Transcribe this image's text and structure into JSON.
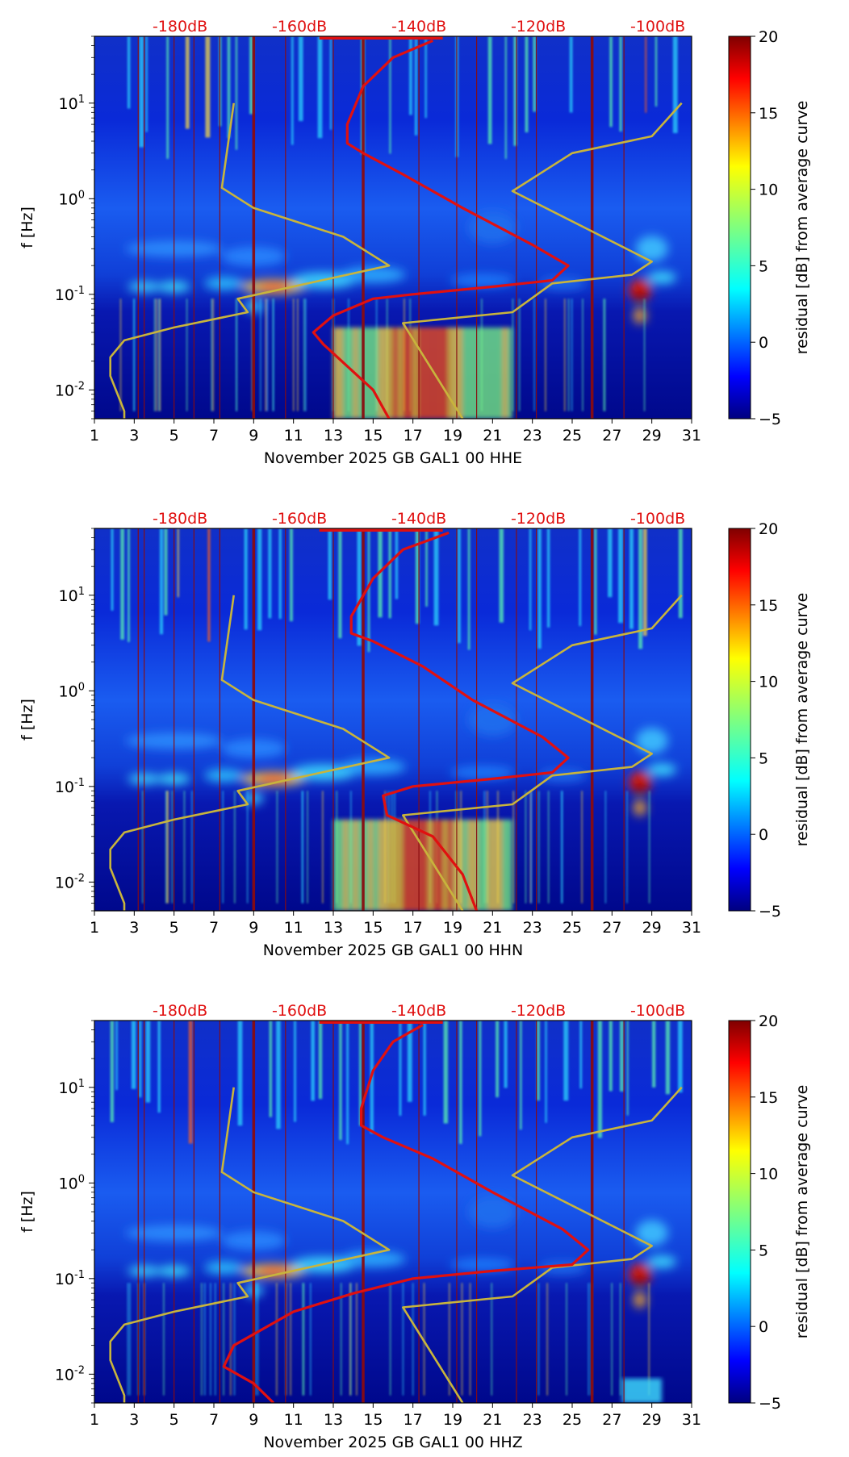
{
  "chart_data": [
    {
      "type": "heatmap",
      "channel": "HHE",
      "xlabel": "November 2025 GB GAL1 00 HHE",
      "ylabel": "f [Hz]",
      "x_ticks": [
        "1",
        "3",
        "5",
        "7",
        "9",
        "11",
        "13",
        "15",
        "17",
        "19",
        "21",
        "23",
        "25",
        "27",
        "29",
        "31"
      ],
      "xlim": [
        1,
        31
      ],
      "ylim": [
        0.005,
        50
      ],
      "y_ticks": [
        {
          "exp": "-2",
          "value": 0.01
        },
        {
          "exp": "-1",
          "value": 0.1
        },
        {
          "exp": "0",
          "value": 1
        },
        {
          "exp": "1",
          "value": 10
        }
      ],
      "db_scale_labels": [
        "-180dB",
        "-160dB",
        "-140dB",
        "-120dB",
        "-100dB"
      ],
      "colorbar": {
        "label": "residual [dB] from average curve",
        "ticks": [
          "20",
          "15",
          "10",
          "5",
          "0",
          "−5"
        ],
        "range": [
          -5,
          20
        ]
      },
      "series": [
        {
          "name": "model curve",
          "color": "#c8b43c",
          "points": [
            [
              8.0,
              10
            ],
            [
              7.4,
              1.3
            ],
            [
              9,
              0.8
            ],
            [
              13.5,
              0.4
            ],
            [
              15.8,
              0.2
            ],
            [
              8.2,
              0.09
            ],
            [
              8.7,
              0.065
            ],
            [
              5,
              0.045
            ],
            [
              2.5,
              0.033
            ],
            [
              1.8,
              0.022
            ],
            [
              1.8,
              0.014
            ],
            [
              2.5,
              0.006
            ],
            [
              2.5,
              0.005
            ]
          ]
        },
        {
          "name": "model curve high",
          "color": "#c8b43c",
          "points": [
            [
              30.5,
              10
            ],
            [
              29,
              4.5
            ],
            [
              25,
              3
            ],
            [
              22,
              1.2
            ],
            [
              29,
              0.22
            ],
            [
              28,
              0.16
            ],
            [
              24,
              0.13
            ],
            [
              22,
              0.065
            ],
            [
              16.5,
              0.05
            ],
            [
              19.5,
              0.005
            ]
          ]
        },
        {
          "name": "average PSD",
          "color": "#e01010",
          "points": [
            [
              18,
              45
            ],
            [
              16,
              30
            ],
            [
              14.5,
              15
            ],
            [
              13.7,
              6
            ],
            [
              13.7,
              3.8
            ],
            [
              14.5,
              3
            ],
            [
              16.5,
              1.8
            ],
            [
              19.5,
              0.8
            ],
            [
              23,
              0.33
            ],
            [
              24.8,
              0.2
            ],
            [
              24,
              0.14
            ],
            [
              21,
              0.12
            ],
            [
              17,
              0.1
            ],
            [
              15,
              0.09
            ],
            [
              13,
              0.06
            ],
            [
              12,
              0.04
            ],
            [
              12.5,
              0.03
            ],
            [
              15,
              0.01
            ],
            [
              15.8,
              0.005
            ]
          ]
        }
      ]
    },
    {
      "type": "heatmap",
      "channel": "HHN",
      "xlabel": "November 2025 GB GAL1 00 HHN",
      "ylabel": "f [Hz]",
      "x_ticks": [
        "1",
        "3",
        "5",
        "7",
        "9",
        "11",
        "13",
        "15",
        "17",
        "19",
        "21",
        "23",
        "25",
        "27",
        "29",
        "31"
      ],
      "xlim": [
        1,
        31
      ],
      "ylim": [
        0.005,
        50
      ],
      "y_ticks": [
        {
          "exp": "-2",
          "value": 0.01
        },
        {
          "exp": "-1",
          "value": 0.1
        },
        {
          "exp": "0",
          "value": 1
        },
        {
          "exp": "1",
          "value": 10
        }
      ],
      "db_scale_labels": [
        "-180dB",
        "-160dB",
        "-140dB",
        "-120dB",
        "-100dB"
      ],
      "colorbar": {
        "label": "residual [dB] from average curve",
        "ticks": [
          "20",
          "15",
          "10",
          "5",
          "0",
          "−5"
        ],
        "range": [
          -5,
          20
        ]
      },
      "series": [
        {
          "name": "model curve",
          "color": "#c8b43c",
          "points": [
            [
              8.0,
              10
            ],
            [
              7.4,
              1.3
            ],
            [
              9,
              0.8
            ],
            [
              13.5,
              0.4
            ],
            [
              15.8,
              0.2
            ],
            [
              8.2,
              0.09
            ],
            [
              8.7,
              0.065
            ],
            [
              5,
              0.045
            ],
            [
              2.5,
              0.033
            ],
            [
              1.8,
              0.022
            ],
            [
              1.8,
              0.014
            ],
            [
              2.5,
              0.006
            ],
            [
              2.5,
              0.005
            ]
          ]
        },
        {
          "name": "model curve high",
          "color": "#c8b43c",
          "points": [
            [
              30.5,
              10
            ],
            [
              29,
              4.5
            ],
            [
              25,
              3
            ],
            [
              22,
              1.2
            ],
            [
              29,
              0.22
            ],
            [
              28,
              0.16
            ],
            [
              24,
              0.13
            ],
            [
              22,
              0.065
            ],
            [
              16.5,
              0.05
            ],
            [
              19.5,
              0.005
            ]
          ]
        },
        {
          "name": "average PSD",
          "color": "#e01010",
          "points": [
            [
              18.8,
              45
            ],
            [
              16.5,
              30
            ],
            [
              15,
              15
            ],
            [
              13.9,
              6
            ],
            [
              13.9,
              4
            ],
            [
              15,
              3.3
            ],
            [
              17.5,
              1.8
            ],
            [
              20,
              0.8
            ],
            [
              23.5,
              0.33
            ],
            [
              24.8,
              0.2
            ],
            [
              24,
              0.14
            ],
            [
              21,
              0.12
            ],
            [
              17,
              0.1
            ],
            [
              15.5,
              0.08
            ],
            [
              15.7,
              0.05
            ],
            [
              18,
              0.03
            ],
            [
              19.5,
              0.012
            ],
            [
              20.2,
              0.005
            ]
          ]
        }
      ]
    },
    {
      "type": "heatmap",
      "channel": "HHZ",
      "xlabel": "November 2025 GB GAL1 00 HHZ",
      "ylabel": "f [Hz]",
      "x_ticks": [
        "1",
        "3",
        "5",
        "7",
        "9",
        "11",
        "13",
        "15",
        "17",
        "19",
        "21",
        "23",
        "25",
        "27",
        "29",
        "31"
      ],
      "xlim": [
        1,
        31
      ],
      "ylim": [
        0.005,
        50
      ],
      "y_ticks": [
        {
          "exp": "-2",
          "value": 0.01
        },
        {
          "exp": "-1",
          "value": 0.1
        },
        {
          "exp": "0",
          "value": 1
        },
        {
          "exp": "1",
          "value": 10
        }
      ],
      "db_scale_labels": [
        "-180dB",
        "-160dB",
        "-140dB",
        "-120dB",
        "-100dB"
      ],
      "colorbar": {
        "label": "residual [dB] from average curve",
        "ticks": [
          "20",
          "15",
          "10",
          "5",
          "0",
          "−5"
        ],
        "range": [
          -5,
          20
        ]
      },
      "series": [
        {
          "name": "model curve",
          "color": "#c8b43c",
          "points": [
            [
              8.0,
              10
            ],
            [
              7.4,
              1.3
            ],
            [
              9,
              0.8
            ],
            [
              13.5,
              0.4
            ],
            [
              15.8,
              0.2
            ],
            [
              8.2,
              0.09
            ],
            [
              8.7,
              0.065
            ],
            [
              5,
              0.045
            ],
            [
              2.5,
              0.033
            ],
            [
              1.8,
              0.022
            ],
            [
              1.8,
              0.014
            ],
            [
              2.5,
              0.006
            ],
            [
              2.5,
              0.005
            ]
          ]
        },
        {
          "name": "model curve high",
          "color": "#c8b43c",
          "points": [
            [
              30.5,
              10
            ],
            [
              29,
              4.5
            ],
            [
              25,
              3
            ],
            [
              22,
              1.2
            ],
            [
              29,
              0.22
            ],
            [
              28,
              0.16
            ],
            [
              24,
              0.13
            ],
            [
              22,
              0.065
            ],
            [
              16.5,
              0.05
            ],
            [
              19.5,
              0.005
            ]
          ]
        },
        {
          "name": "average PSD",
          "color": "#e01010",
          "points": [
            [
              17.5,
              45
            ],
            [
              16,
              30
            ],
            [
              15,
              15
            ],
            [
              14.4,
              6
            ],
            [
              14.4,
              4
            ],
            [
              15.5,
              3
            ],
            [
              18,
              1.8
            ],
            [
              21,
              0.8
            ],
            [
              24.5,
              0.33
            ],
            [
              25.8,
              0.2
            ],
            [
              25,
              0.14
            ],
            [
              21,
              0.12
            ],
            [
              17,
              0.1
            ],
            [
              14,
              0.07
            ],
            [
              11,
              0.045
            ],
            [
              8,
              0.02
            ],
            [
              7.5,
              0.012
            ],
            [
              9,
              0.008
            ],
            [
              10,
              0.005
            ]
          ]
        }
      ]
    }
  ]
}
